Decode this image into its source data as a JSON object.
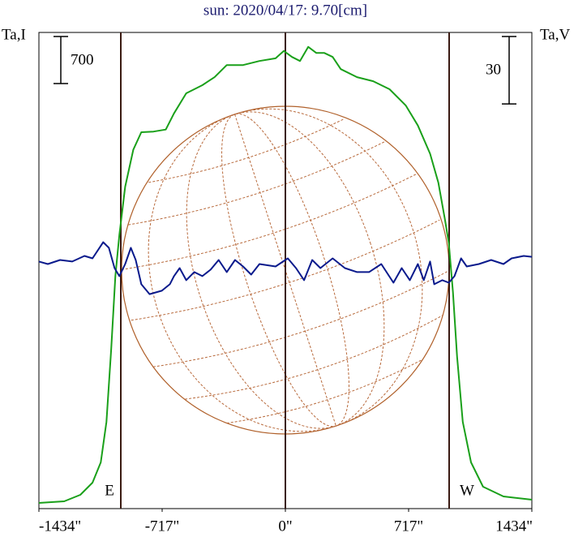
{
  "chart_data": {
    "type": "line",
    "title": "sun: 2020/04/17: 9.70[cm]",
    "y_label": "Ta,I",
    "y2_label": "Ta,V",
    "scale_i": 700,
    "scale_i_label": "700",
    "scale_v": 30,
    "scale_v_label": "30",
    "east_label": "E",
    "west_label": "W",
    "xlim": [
      -1434,
      1434
    ],
    "xticks": [
      {
        "value": -1434,
        "label": "-1434\""
      },
      {
        "value": -717,
        "label": "-717\""
      },
      {
        "value": 0,
        "label": "0\""
      },
      {
        "value": 717,
        "label": "717\""
      },
      {
        "value": 1434,
        "label": "1434\""
      }
    ],
    "ylim": [
      0,
      7085
    ],
    "y2lim": [
      -106,
      106
    ],
    "series": [
      {
        "name": "I",
        "color": "#1aa01a",
        "x": [
          -1434,
          -1287,
          -1193,
          -1122,
          -1074,
          -1041,
          -1013,
          -989,
          -966,
          -932,
          -885,
          -838,
          -767,
          -696,
          -648,
          -577,
          -483,
          -412,
          -341,
          -246,
          -151,
          -57,
          -9,
          38,
          85,
          133,
          180,
          227,
          275,
          322,
          417,
          511,
          606,
          700,
          771,
          842,
          890,
          928,
          951,
          975,
          999,
          1032,
          1080,
          1150,
          1269,
          1434
        ],
        "values": [
          84,
          109,
          205,
          386,
          688,
          1290,
          2380,
          3460,
          4070,
          4790,
          5340,
          5600,
          5610,
          5640,
          5880,
          6180,
          6300,
          6420,
          6600,
          6600,
          6660,
          6700,
          6810,
          6720,
          6660,
          6870,
          6780,
          6780,
          6720,
          6540,
          6420,
          6360,
          6240,
          6000,
          5700,
          5280,
          4850,
          4310,
          3950,
          3220,
          2260,
          1290,
          688,
          326,
          181,
          133
        ]
      },
      {
        "name": "V",
        "color": "#0a1a8c",
        "axis": "y2",
        "x": [
          -1434,
          -1382,
          -1311,
          -1240,
          -1169,
          -1122,
          -1060,
          -1027,
          -994,
          -966,
          -932,
          -899,
          -871,
          -838,
          -790,
          -719,
          -672,
          -648,
          -615,
          -577,
          -530,
          -483,
          -435,
          -388,
          -341,
          -293,
          -246,
          -199,
          -151,
          -57,
          14,
          62,
          109,
          156,
          204,
          275,
          346,
          417,
          487,
          558,
          629,
          677,
          724,
          771,
          805,
          842,
          866,
          913,
          951,
          984,
          1022,
          1055,
          1126,
          1197,
          1269,
          1316,
          1387,
          1434
        ],
        "values": [
          4.0,
          2.9,
          4.7,
          4.0,
          6.5,
          5.4,
          12.6,
          10.1,
          1.1,
          -2.5,
          2.9,
          10.1,
          4.7,
          -6.1,
          -10.5,
          -9.0,
          -6.1,
          -2.5,
          1.1,
          -4.3,
          -0.7,
          -2.5,
          0.4,
          4.7,
          -0.7,
          4.7,
          1.8,
          -1.8,
          2.9,
          1.8,
          5.4,
          1.1,
          -4.3,
          4.7,
          1.1,
          5.4,
          1.1,
          -0.7,
          -0.7,
          2.9,
          -5.4,
          1.1,
          -4.3,
          2.9,
          -4.3,
          4.0,
          -6.1,
          -4.3,
          -5.4,
          -2.5,
          5.4,
          1.8,
          2.9,
          4.7,
          2.9,
          5.4,
          6.5,
          6.1
        ]
      }
    ]
  }
}
